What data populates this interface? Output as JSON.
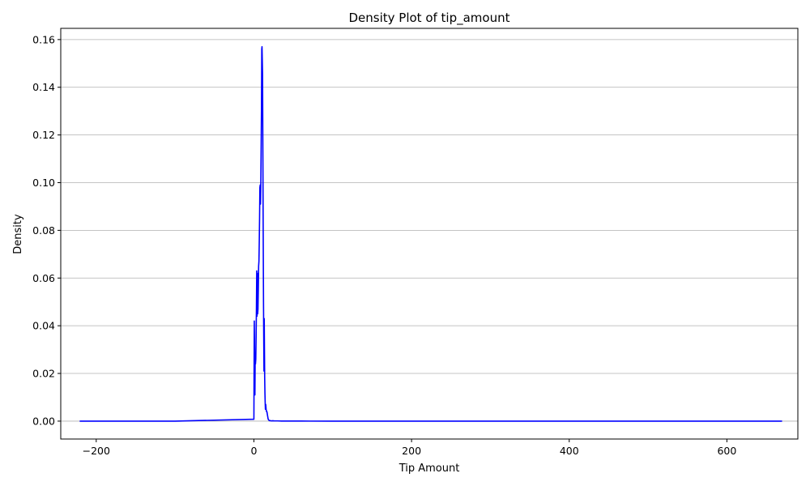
{
  "chart_data": {
    "type": "line",
    "title": "Density Plot of tip_amount",
    "xlabel": "Tip Amount",
    "ylabel": "Density",
    "xlim": [
      -245,
      690
    ],
    "ylim": [
      -0.0075,
      0.1647
    ],
    "x_ticks": [
      -200,
      0,
      200,
      400,
      600
    ],
    "x_tick_labels": [
      "−200",
      "0",
      "200",
      "400",
      "600"
    ],
    "y_ticks": [
      0.0,
      0.02,
      0.04,
      0.06,
      0.08,
      0.1,
      0.12,
      0.14,
      0.16
    ],
    "y_tick_labels": [
      "0.00",
      "0.02",
      "0.04",
      "0.06",
      "0.08",
      "0.10",
      "0.12",
      "0.14",
      "0.16"
    ],
    "grid": {
      "y": true,
      "x": false
    },
    "colors": {
      "line": "#0000ff",
      "grid": "#b0b0b0",
      "axes": "#000000"
    },
    "series": [
      {
        "x": [
          -221,
          -100,
          0,
          0.5,
          1.0,
          1.3,
          1.6,
          2.0,
          2.4,
          2.8,
          3.2,
          3.6,
          4.0,
          4.4,
          4.8,
          5.2,
          5.6,
          6.0,
          6.4,
          6.8,
          7.2,
          7.6,
          8.0,
          8.4,
          8.8,
          9.2,
          9.6,
          10.0,
          10.3,
          10.6,
          11.0,
          11.3,
          11.6,
          11.9,
          12.2,
          12.5,
          12.8,
          13.1,
          13.4,
          13.7,
          14.0,
          14.3,
          14.6,
          15.0,
          15.5,
          16.0,
          16.5,
          17.0,
          17.5,
          18.0,
          18.5,
          19.0,
          19.5,
          20.0,
          21.0,
          22.0,
          24.0,
          26.0,
          30.0,
          35.0,
          45.0,
          60.0,
          100.0,
          300.0,
          500.0,
          670.0
        ],
        "y": [
          0.0,
          0.0,
          0.0008,
          0.042,
          0.024,
          0.011,
          0.026,
          0.024,
          0.026,
          0.035,
          0.047,
          0.063,
          0.044,
          0.062,
          0.045,
          0.047,
          0.055,
          0.065,
          0.067,
          0.075,
          0.085,
          0.098,
          0.099,
          0.091,
          0.1,
          0.115,
          0.13,
          0.156,
          0.157,
          0.152,
          0.145,
          0.12,
          0.095,
          0.072,
          0.05,
          0.035,
          0.021,
          0.043,
          0.03,
          0.018,
          0.012,
          0.008,
          0.005,
          0.007,
          0.005,
          0.004,
          0.004,
          0.003,
          0.002,
          0.001,
          0.0006,
          0.0004,
          0.0003,
          0.0002,
          0.0002,
          0.0001,
          0.00015,
          0.0001,
          0.0001,
          5e-05,
          3e-05,
          2e-05,
          0.0,
          0.0,
          0.0,
          0.0
        ]
      }
    ]
  }
}
